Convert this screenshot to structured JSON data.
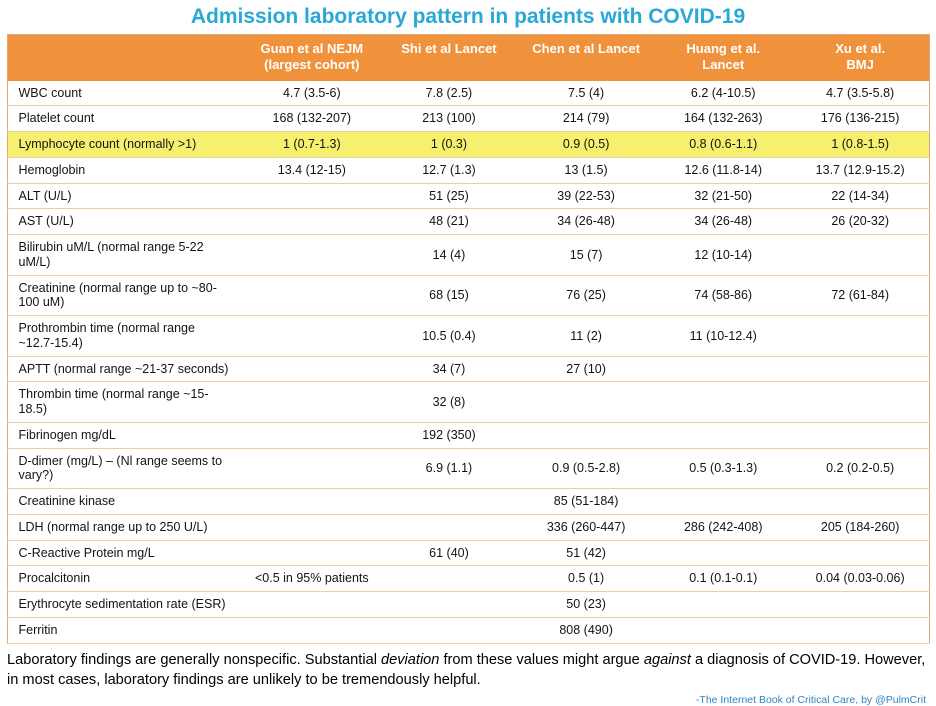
{
  "title": "Admission laboratory pattern in patients with COVID-19",
  "table": {
    "corner_label": "",
    "columns": [
      {
        "lines": [
          "Guan et al NEJM",
          "(largest cohort)"
        ]
      },
      {
        "lines": [
          "Shi et al Lancet"
        ]
      },
      {
        "lines": [
          "Chen et al Lancet"
        ]
      },
      {
        "lines": [
          "Huang et al.",
          "Lancet"
        ]
      },
      {
        "lines": [
          "Xu et al.",
          "BMJ"
        ]
      }
    ],
    "rows": [
      {
        "label": "WBC count",
        "highlight": false,
        "values": [
          "4.7 (3.5-6)",
          "7.8 (2.5)",
          "7.5 (4)",
          "6.2 (4-10.5)",
          "4.7 (3.5-5.8)"
        ]
      },
      {
        "label": "Platelet count",
        "highlight": false,
        "values": [
          "168 (132-207)",
          "213 (100)",
          "214 (79)",
          "164 (132-263)",
          "176 (136-215)"
        ]
      },
      {
        "label": "Lymphocyte count (normally >1)",
        "highlight": true,
        "values": [
          "1 (0.7-1.3)",
          "1 (0.3)",
          "0.9 (0.5)",
          "0.8 (0.6-1.1)",
          "1 (0.8-1.5)"
        ]
      },
      {
        "label": "Hemoglobin",
        "highlight": false,
        "values": [
          "13.4 (12-15)",
          "12.7 (1.3)",
          "13 (1.5)",
          "12.6 (11.8-14)",
          "13.7 (12.9-15.2)"
        ]
      },
      {
        "label": "ALT (U/L)",
        "highlight": false,
        "values": [
          "",
          "51 (25)",
          "39 (22-53)",
          "32 (21-50)",
          "22 (14-34)"
        ]
      },
      {
        "label": "AST (U/L)",
        "highlight": false,
        "values": [
          "",
          "48 (21)",
          "34 (26-48)",
          "34 (26-48)",
          "26 (20-32)"
        ]
      },
      {
        "label": "Bilirubin uM/L (normal range 5-22 uM/L)",
        "highlight": false,
        "values": [
          "",
          "14 (4)",
          "15 (7)",
          "12 (10-14)",
          ""
        ]
      },
      {
        "label": "Creatinine (normal range up to ~80-100 uM)",
        "highlight": false,
        "values": [
          "",
          "68 (15)",
          "76 (25)",
          "74 (58-86)",
          "72 (61-84)"
        ]
      },
      {
        "label": "Prothrombin time (normal range ~12.7-15.4)",
        "highlight": false,
        "values": [
          "",
          "10.5 (0.4)",
          "11 (2)",
          "11 (10-12.4)",
          ""
        ]
      },
      {
        "label": "APTT (normal range ~21-37 seconds)",
        "highlight": false,
        "values": [
          "",
          "34 (7)",
          "27 (10)",
          "",
          ""
        ]
      },
      {
        "label": "Thrombin time (normal range ~15-18.5)",
        "highlight": false,
        "values": [
          "",
          "32 (8)",
          "",
          "",
          ""
        ]
      },
      {
        "label": "Fibrinogen mg/dL",
        "highlight": false,
        "values": [
          "",
          "192 (350)",
          "",
          "",
          ""
        ]
      },
      {
        "label": "D-dimer (mg/L) – (Nl range seems to vary?)",
        "highlight": false,
        "values": [
          "",
          "6.9 (1.1)",
          "0.9 (0.5-2.8)",
          "0.5 (0.3-1.3)",
          "0.2 (0.2-0.5)"
        ]
      },
      {
        "label": "Creatinine kinase",
        "highlight": false,
        "values": [
          "",
          "",
          "85 (51-184)",
          "",
          ""
        ]
      },
      {
        "label": "LDH (normal range up to 250 U/L)",
        "highlight": false,
        "values": [
          "",
          "",
          "336 (260-447)",
          "286 (242-408)",
          "205 (184-260)"
        ]
      },
      {
        "label": "C-Reactive Protein mg/L",
        "highlight": false,
        "values": [
          "",
          "61 (40)",
          "51 (42)",
          "",
          ""
        ]
      },
      {
        "label": "Procalcitonin",
        "highlight": false,
        "values": [
          "<0.5 in 95% patients",
          "",
          "0.5 (1)",
          "0.1 (0.1-0.1)",
          "0.04 (0.03-0.06)"
        ]
      },
      {
        "label": "Erythrocyte sedimentation rate (ESR)",
        "highlight": false,
        "values": [
          "",
          "",
          "50 (23)",
          "",
          ""
        ]
      },
      {
        "label": "Ferritin",
        "highlight": false,
        "values": [
          "",
          "",
          "808 (490)",
          "",
          ""
        ]
      }
    ]
  },
  "footer": {
    "segments": [
      {
        "text": "Laboratory findings are generally nonspecific.  Substantial ",
        "italic": false
      },
      {
        "text": "deviation",
        "italic": true
      },
      {
        "text": " from these values might argue ",
        "italic": false
      },
      {
        "text": "against",
        "italic": true
      },
      {
        "text": " a diagnosis of COVID-19.  However, in most cases, laboratory findings are unlikely to be tremendously helpful.",
        "italic": false
      }
    ]
  },
  "attribution": "-The Internet Book of Critical Care, by @PulmCrit",
  "colors": {
    "title": "#29A8D8",
    "header_bg": "#F0913C",
    "highlight_bg": "#F7F06E",
    "row_border": "#EACDA4",
    "outer_border": "#DFA977",
    "attribution": "#2E86C1"
  }
}
